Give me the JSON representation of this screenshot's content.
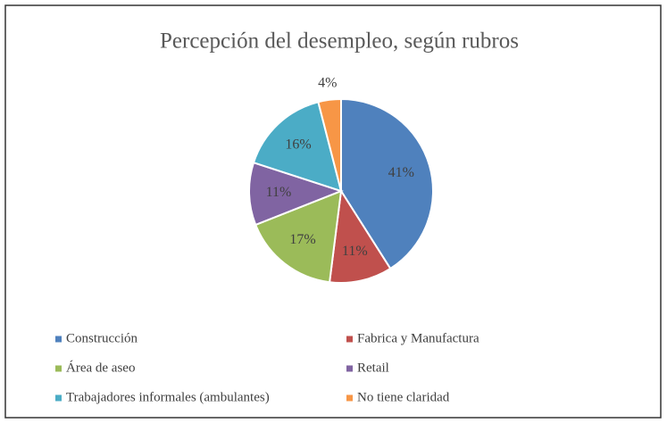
{
  "chart_data": {
    "type": "pie",
    "title": "Percepción del desempleo, según rubros",
    "categories": [
      "Construcción",
      "Fabrica y Manufactura",
      "Área de aseo",
      "Retail",
      "Trabajadores informales (ambulantes)",
      "No tiene claridad"
    ],
    "values": [
      41,
      11,
      17,
      11,
      16,
      4
    ],
    "value_labels": [
      "41%",
      "11%",
      "17%",
      "11%",
      "16%",
      "4%"
    ],
    "colors": [
      "#4f81bd",
      "#c0504d",
      "#9bbb59",
      "#8064a2",
      "#4bacc6",
      "#f79646"
    ],
    "legend": "bottom"
  }
}
